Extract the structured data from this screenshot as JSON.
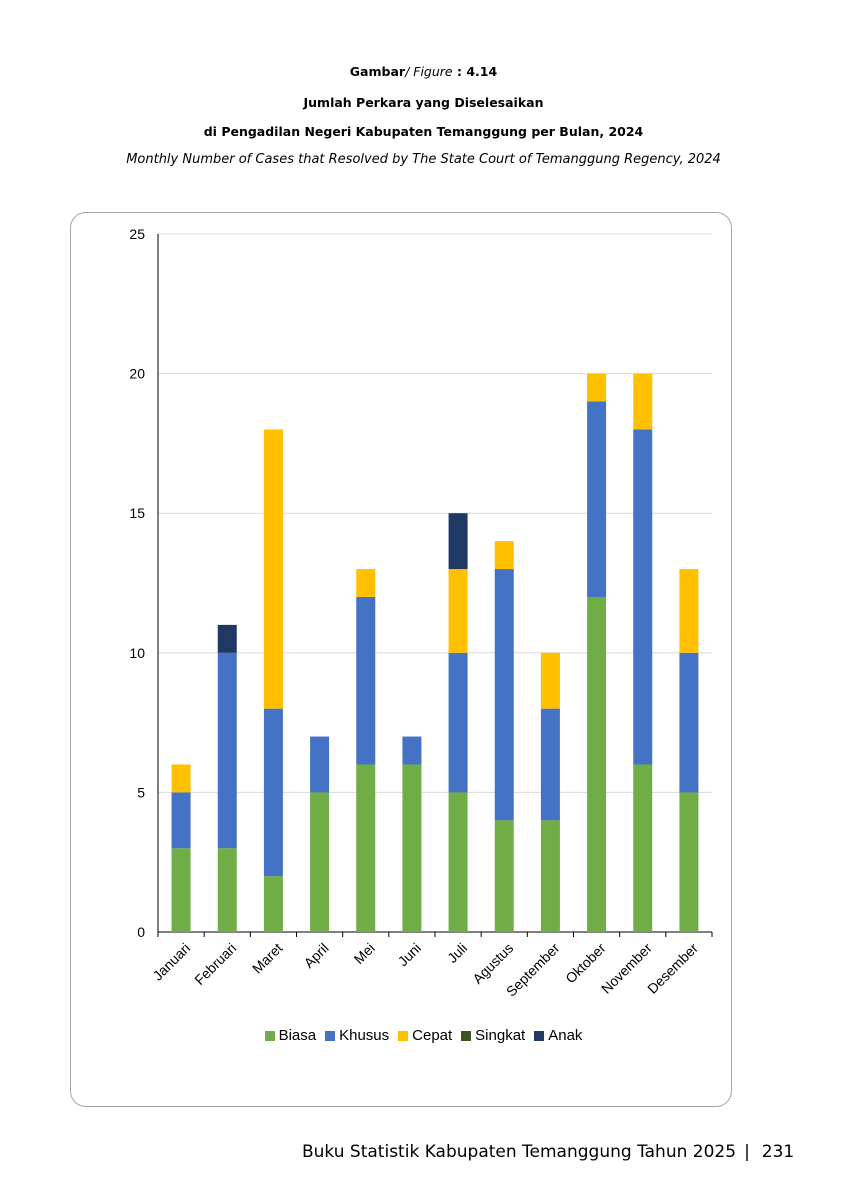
{
  "caption": {
    "gambar_label": "Gambar",
    "figure_label": "/ Figure",
    "figure_number": ": 4.14",
    "title_id_line1": "Jumlah Perkara yang Diselesaikan",
    "title_id_line2": "di Pengadilan Negeri Kabupaten Temanggung per Bulan, 2024",
    "title_en": "Monthly Number of Cases that Resolved by The State Court of Temanggung Regency, 2024"
  },
  "chart_data": {
    "type": "bar",
    "stacked": true,
    "categories": [
      "Januari",
      "Februari",
      "Maret",
      "April",
      "Mei",
      "Juni",
      "Juli",
      "Agustus",
      "September",
      "Oktober",
      "November",
      "Desember"
    ],
    "series": [
      {
        "name": "Biasa",
        "color": "#70ad47",
        "values": [
          3,
          3,
          2,
          5,
          6,
          6,
          5,
          4,
          4,
          12,
          6,
          5
        ]
      },
      {
        "name": "Khusus",
        "color": "#4472c4",
        "values": [
          2,
          7,
          6,
          2,
          6,
          1,
          5,
          9,
          4,
          7,
          12,
          5
        ]
      },
      {
        "name": "Cepat",
        "color": "#ffc000",
        "values": [
          1,
          0,
          10,
          0,
          1,
          0,
          3,
          1,
          2,
          1,
          2,
          3
        ]
      },
      {
        "name": "Singkat",
        "color": "#375623",
        "values": [
          0,
          0,
          0,
          0,
          0,
          0,
          0,
          0,
          0,
          0,
          0,
          0
        ]
      },
      {
        "name": "Anak",
        "color": "#1f3864",
        "values": [
          0,
          1,
          0,
          0,
          0,
          0,
          2,
          0,
          0,
          0,
          0,
          0
        ]
      }
    ],
    "ylim": [
      0,
      25
    ],
    "yticks": [
      "0",
      "5",
      "10",
      "15",
      "20",
      "25"
    ],
    "grid": true,
    "legend_position": "bottom"
  },
  "footer": {
    "book_title": "Buku Statistik Kabupaten Temanggung Tahun 2025",
    "separator": "|",
    "page_number": "231"
  }
}
